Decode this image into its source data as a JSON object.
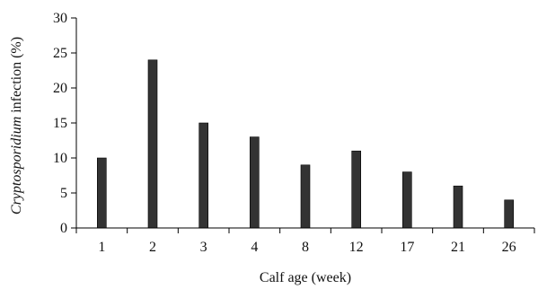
{
  "chart_data": {
    "type": "bar",
    "categories": [
      "1",
      "2",
      "3",
      "4",
      "8",
      "12",
      "17",
      "21",
      "26"
    ],
    "values": [
      10,
      24,
      15,
      13,
      9,
      11,
      8,
      6,
      4
    ],
    "title": "",
    "xlabel": "Calf age (week)",
    "ylabel_italic": "Cryptosporidium",
    "ylabel_rest": " infection (%)",
    "ylim": [
      0,
      30
    ],
    "yticks": [
      0,
      5,
      10,
      15,
      20,
      25,
      30
    ],
    "grid": false,
    "legend": "none",
    "colors": {
      "bar": "#333333",
      "axis": "#000000"
    }
  }
}
